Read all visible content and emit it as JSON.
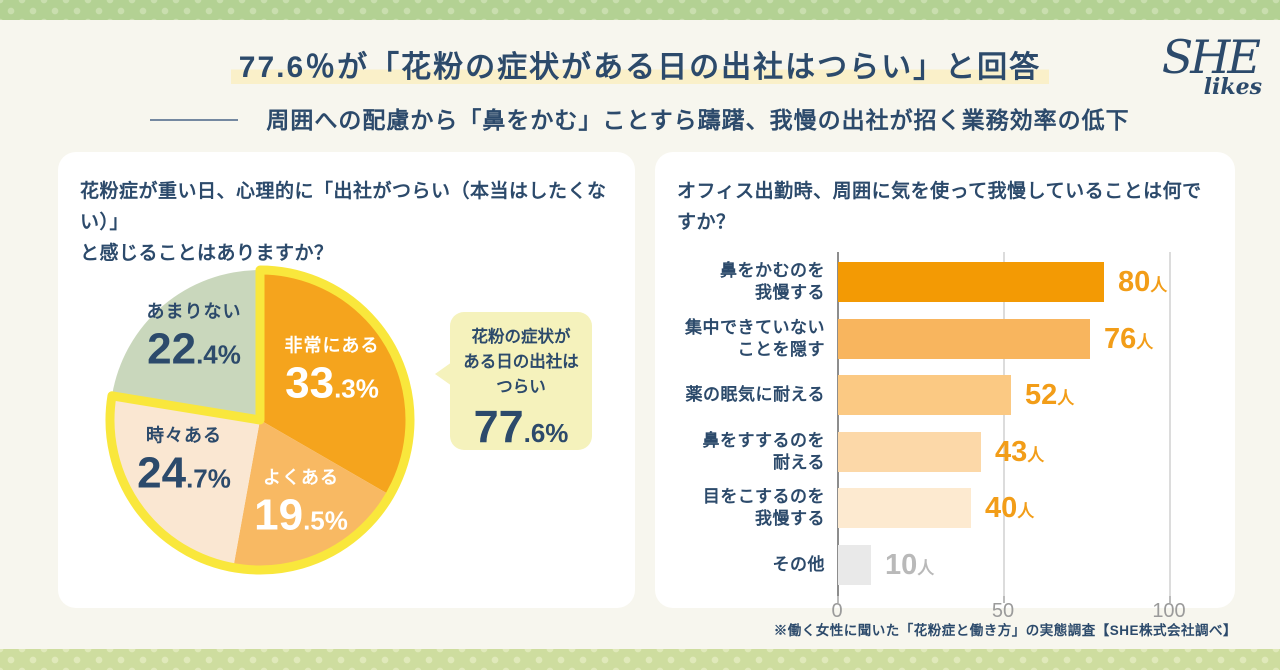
{
  "page": {
    "background": "#f7f6ee",
    "navy": "#2c4a6b",
    "strip_top_color": "#b3d193",
    "strip_bottom_color": "#cedd9f"
  },
  "header": {
    "title": "77.6％が「花粉の症状がある日の出社はつらい」と回答",
    "title_highlight_color": "#faf0c9",
    "subtitle": "周囲への配慮から「鼻をかむ」ことすら躊躇、我慢の出社が招く業務効率の低下",
    "logo_line1": "SHE",
    "logo_line2": "likes"
  },
  "left_panel": {
    "question_line1": "花粉症が重い日、心理的に「出社がつらい（本当はしたくない）」",
    "question_line2": "と感じることはありますか？",
    "callout": {
      "lines": [
        "花粉の症状が",
        "ある日の出社は",
        "つらい"
      ],
      "value_int": "77",
      "value_dec": ".6%"
    }
  },
  "footer": {
    "note": "※働く女性に聞いた「花粉症と働き方」の実態調査【SHE株式会社調べ】"
  },
  "chart_data": [
    {
      "type": "pie",
      "title": "花粉症が重い日、心理的に「出社がつらい（本当はしたくない）」と感じることはありますか？",
      "unit": "%",
      "start_angle": "12 o'clock",
      "direction": "clockwise",
      "slices": [
        {
          "label": "非常にある",
          "value": 33.3,
          "color": "#f5a41d",
          "text_color": "#ffffff",
          "in_highlight_group": true
        },
        {
          "label": "よくある",
          "value": 19.5,
          "color": "#f8b963",
          "text_color": "#ffffff",
          "in_highlight_group": true
        },
        {
          "label": "時々ある",
          "value": 24.7,
          "color": "#fae7d2",
          "text_color": "#2c4a6b",
          "in_highlight_group": true
        },
        {
          "label": "あまりない",
          "value": 22.4,
          "color": "#c9d7bc",
          "text_color": "#2c4a6b",
          "in_highlight_group": false
        }
      ],
      "highlight_group": {
        "label": "花粉の症状がある日の出社はつらい",
        "value": 77.6,
        "outline_color": "#f9e73c"
      }
    },
    {
      "type": "bar",
      "orientation": "horizontal",
      "title": "オフィス出勤時、周囲に気を使って我慢していることは何ですか？",
      "unit": "人",
      "xlim": [
        0,
        100
      ],
      "x_ticks": [
        "0",
        "50",
        "100"
      ],
      "grid": true,
      "bars": [
        {
          "label_lines": [
            "鼻をかむのを",
            "我慢する"
          ],
          "value": 80,
          "color": "#f39a04",
          "value_color": "#f29d18"
        },
        {
          "label_lines": [
            "集中できていない",
            "ことを隠す"
          ],
          "value": 76,
          "color": "#f8b55e",
          "value_color": "#f29d18"
        },
        {
          "label_lines": [
            "薬の眠気に耐える"
          ],
          "value": 52,
          "color": "#fbc983",
          "value_color": "#f29d18"
        },
        {
          "label_lines": [
            "鼻をすするのを",
            "耐える"
          ],
          "value": 43,
          "color": "#fcd8a8",
          "value_color": "#f29d18"
        },
        {
          "label_lines": [
            "目をこするのを",
            "我慢する"
          ],
          "value": 40,
          "color": "#fdead0",
          "value_color": "#f29d18"
        },
        {
          "label_lines": [
            "その他"
          ],
          "value": 10,
          "color": "#e9e9e9",
          "value_color": "#b9b9b9"
        }
      ]
    }
  ]
}
